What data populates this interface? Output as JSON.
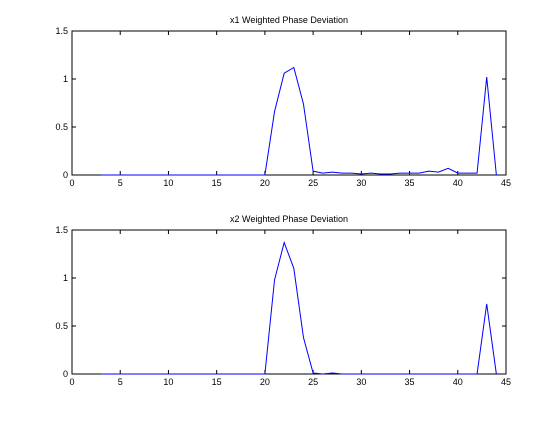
{
  "chart_data": [
    {
      "type": "line",
      "title": "x1 Weighted Phase Deviation",
      "xlabel": "",
      "ylabel": "",
      "xlim": [
        0,
        45
      ],
      "ylim": [
        0,
        1.5
      ],
      "xticks": [
        "0",
        "5",
        "10",
        "15",
        "20",
        "25",
        "30",
        "35",
        "40",
        "45"
      ],
      "yticks": [
        "0",
        "0.5",
        "1",
        "1.5"
      ],
      "grid": false,
      "color": "#0000ff",
      "x": [
        3,
        4,
        5,
        6,
        7,
        8,
        9,
        10,
        11,
        12,
        13,
        14,
        15,
        16,
        17,
        18,
        19,
        20,
        21,
        22,
        23,
        24,
        25,
        26,
        27,
        28,
        29,
        30,
        31,
        32,
        33,
        34,
        35,
        36,
        37,
        38,
        39,
        40,
        41,
        42,
        43,
        44
      ],
      "y": [
        0,
        0,
        0,
        0,
        0,
        0,
        0,
        0,
        0,
        0,
        0,
        0,
        0,
        0,
        0,
        0,
        0,
        0,
        0.66,
        1.06,
        1.12,
        0.74,
        0.04,
        0.02,
        0.03,
        0.02,
        0.02,
        0.01,
        0.02,
        0.01,
        0.01,
        0.02,
        0.02,
        0.02,
        0.04,
        0.03,
        0.07,
        0.02,
        0.02,
        0.02,
        1.02,
        0
      ]
    },
    {
      "type": "line",
      "title": "x2 Weighted Phase Deviation",
      "xlabel": "",
      "ylabel": "",
      "xlim": [
        0,
        45
      ],
      "ylim": [
        0,
        1.5
      ],
      "xticks": [
        "0",
        "5",
        "10",
        "15",
        "20",
        "25",
        "30",
        "35",
        "40",
        "45"
      ],
      "yticks": [
        "0",
        "0.5",
        "1",
        "1.5"
      ],
      "grid": false,
      "color": "#0000ff",
      "x": [
        3,
        4,
        5,
        6,
        7,
        8,
        9,
        10,
        11,
        12,
        13,
        14,
        15,
        16,
        17,
        18,
        19,
        20,
        21,
        22,
        23,
        24,
        25,
        26,
        27,
        28,
        29,
        30,
        31,
        32,
        33,
        34,
        35,
        36,
        37,
        38,
        39,
        40,
        41,
        42,
        43,
        44
      ],
      "y": [
        0,
        0,
        0,
        0,
        0,
        0,
        0,
        0,
        0,
        0,
        0,
        0,
        0,
        0,
        0,
        0,
        0,
        0,
        0.98,
        1.37,
        1.1,
        0.38,
        0.01,
        0,
        0.01,
        0,
        0,
        0,
        0,
        0,
        0,
        0,
        0,
        0,
        0,
        0,
        0,
        0,
        0,
        0,
        0.73,
        0
      ]
    }
  ]
}
